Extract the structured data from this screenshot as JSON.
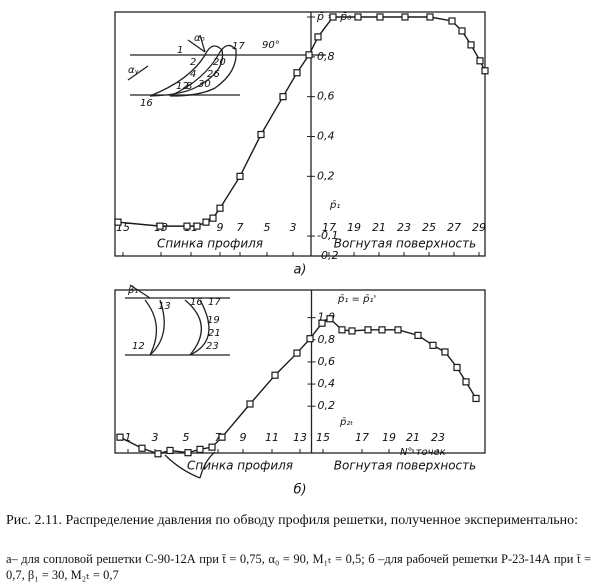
{
  "chart_data": [
    {
      "type": "line",
      "label": "а)",
      "regions": [
        "Спинка профиля",
        "Вогнутая поверхность"
      ],
      "xlim": [
        0,
        37
      ],
      "ylim": [
        -0.2,
        1.0
      ],
      "xticks": [
        {
          "value": 0.8,
          "label": "15"
        },
        {
          "value": 4.6,
          "label": "13"
        },
        {
          "value": 7.6,
          "label": "11"
        },
        {
          "value": 10.5,
          "label": "9"
        },
        {
          "value": 12.5,
          "label": "7"
        },
        {
          "value": 15.2,
          "label": "5"
        },
        {
          "value": 17.8,
          "label": "3"
        },
        {
          "value": 21.4,
          "label": "17"
        },
        {
          "value": 23.9,
          "label": "19"
        },
        {
          "value": 26.4,
          "label": "21"
        },
        {
          "value": 28.9,
          "label": "23"
        },
        {
          "value": 31.4,
          "label": "25"
        },
        {
          "value": 33.9,
          "label": "27"
        },
        {
          "value": 36.4,
          "label": "29"
        }
      ],
      "yticks": [
        {
          "value": -0.2,
          "label": "-0,2"
        },
        {
          "value": -0.1,
          "label": "-0,1"
        },
        {
          "value": 0.2,
          "label": "0,2"
        },
        {
          "value": 0.4,
          "label": "0,4"
        },
        {
          "value": 0.6,
          "label": "0,6"
        },
        {
          "value": 0.8,
          "label": "0,8"
        },
        {
          "value": 1.0,
          "label": "p̄ = p̄₀"
        }
      ],
      "x": [
        0.3,
        4.5,
        7.2,
        8.2,
        9.1,
        9.8,
        10.5,
        12.5,
        14.6,
        16.8,
        18.2,
        19.4,
        20.3,
        21.8,
        24.3,
        26.5,
        29.0,
        31.5,
        33.7,
        34.7,
        35.6,
        36.5,
        37
      ],
      "series": [
        {
          "color": "#1a1a1a",
          "values": [
            -0.03,
            -0.05,
            -0.05,
            -0.05,
            -0.03,
            -0.01,
            0.04,
            0.2,
            0.41,
            0.6,
            0.72,
            0.81,
            0.9,
            1.0,
            1.0,
            1.0,
            1.0,
            1.0,
            0.98,
            0.93,
            0.86,
            0.78,
            0.73
          ]
        }
      ],
      "annotations": [
        "90°",
        "α₀",
        "αᵧ",
        "1",
        "2",
        "20",
        "17",
        "4",
        "26",
        "12",
        "8",
        "30",
        "16",
        "p̄₁"
      ]
    },
    {
      "type": "line",
      "label": "б)",
      "regions": [
        "Спинка профиля",
        "Вогнутая поверхность"
      ],
      "xlim": [
        0,
        37
      ],
      "ylim": [
        -0.25,
        1.25
      ],
      "xticks": [
        {
          "value": 1.3,
          "label": "1"
        },
        {
          "value": 4.0,
          "label": "3"
        },
        {
          "value": 7.1,
          "label": "5"
        },
        {
          "value": 10.3,
          "label": "7"
        },
        {
          "value": 12.8,
          "label": "9"
        },
        {
          "value": 15.7,
          "label": "11"
        },
        {
          "value": 18.5,
          "label": "13"
        },
        {
          "value": 20.8,
          "label": "15"
        },
        {
          "value": 24.7,
          "label": "17"
        },
        {
          "value": 27.4,
          "label": "19"
        },
        {
          "value": 29.8,
          "label": "21"
        },
        {
          "value": 32.3,
          "label": "23"
        }
      ],
      "yticks": [
        {
          "value": 0.2,
          "label": "0,2"
        },
        {
          "value": 0.4,
          "label": "0,4"
        },
        {
          "value": 0.6,
          "label": "0,6"
        },
        {
          "value": 0.8,
          "label": "0,8"
        },
        {
          "value": 1.0,
          "label": "1,0"
        }
      ],
      "x": [
        0.5,
        2.7,
        4.3,
        5.5,
        7.3,
        8.5,
        9.7,
        10.7,
        13.5,
        16.0,
        18.2,
        19.5,
        20.7,
        21.5,
        22.7,
        23.7,
        25.3,
        26.7,
        28.3,
        30.3,
        31.8,
        33.0,
        34.2,
        35.1,
        36.1
      ],
      "series": [
        {
          "color": "#1a1a1a",
          "values": [
            -0.08,
            -0.18,
            -0.23,
            -0.2,
            -0.22,
            -0.19,
            -0.17,
            -0.08,
            0.22,
            0.48,
            0.68,
            0.81,
            0.95,
            0.99,
            0.89,
            0.88,
            0.89,
            0.89,
            0.89,
            0.84,
            0.75,
            0.69,
            0.55,
            0.42,
            0.27
          ]
        }
      ],
      "annotations": [
        "β₁",
        "13",
        "16",
        "17",
        "19",
        "21",
        "23",
        "12",
        "N° точек",
        "p̄₁ = p̄₁'",
        "p̄₂ₜ"
      ]
    }
  ],
  "caption": {
    "title": "Рис. 2.11. Распределение давления по обводу профиля решетки, полученное экспериментально:",
    "text": "а– для сопловой решетки С-90-12А при t̄ = 0,75, α₀ = 90, M₁ₜ = 0,5; б –для рабочей решетки Р-23-14А при t̄ = 0,7, β₁ = 30, M₂ₜ = 0,7"
  }
}
